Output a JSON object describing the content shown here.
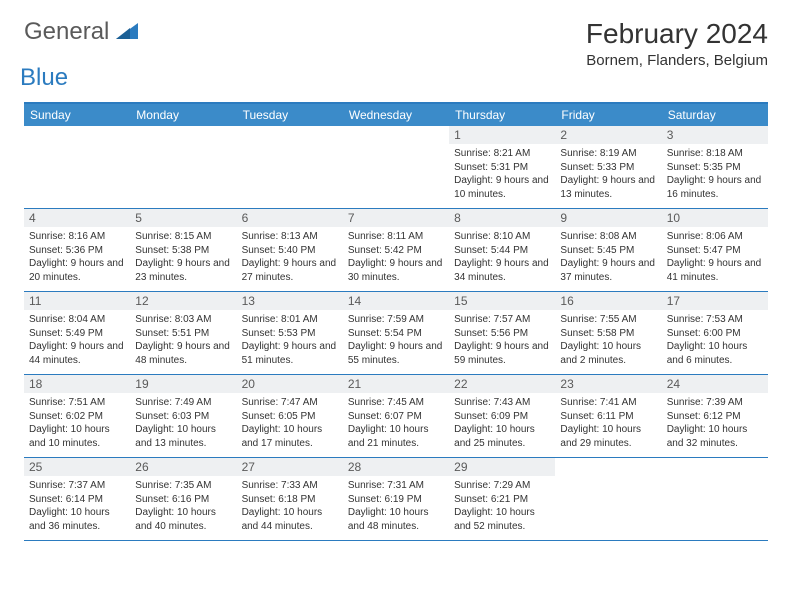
{
  "logo": {
    "general": "General",
    "blue": "Blue"
  },
  "title": "February 2024",
  "location": "Bornem, Flanders, Belgium",
  "colors": {
    "header_bar": "#3b8bc9",
    "top_border": "#2b7bbf",
    "row_border": "#2b7bbf",
    "daynum_bg": "#eef0f2",
    "text": "#333333",
    "logo_gray": "#5a5a5a",
    "logo_blue": "#2b7bbf"
  },
  "day_names": [
    "Sunday",
    "Monday",
    "Tuesday",
    "Wednesday",
    "Thursday",
    "Friday",
    "Saturday"
  ],
  "weeks": [
    [
      null,
      null,
      null,
      null,
      {
        "n": "1",
        "sr": "8:21 AM",
        "ss": "5:31 PM",
        "dl": "9 hours and 10 minutes."
      },
      {
        "n": "2",
        "sr": "8:19 AM",
        "ss": "5:33 PM",
        "dl": "9 hours and 13 minutes."
      },
      {
        "n": "3",
        "sr": "8:18 AM",
        "ss": "5:35 PM",
        "dl": "9 hours and 16 minutes."
      }
    ],
    [
      {
        "n": "4",
        "sr": "8:16 AM",
        "ss": "5:36 PM",
        "dl": "9 hours and 20 minutes."
      },
      {
        "n": "5",
        "sr": "8:15 AM",
        "ss": "5:38 PM",
        "dl": "9 hours and 23 minutes."
      },
      {
        "n": "6",
        "sr": "8:13 AM",
        "ss": "5:40 PM",
        "dl": "9 hours and 27 minutes."
      },
      {
        "n": "7",
        "sr": "8:11 AM",
        "ss": "5:42 PM",
        "dl": "9 hours and 30 minutes."
      },
      {
        "n": "8",
        "sr": "8:10 AM",
        "ss": "5:44 PM",
        "dl": "9 hours and 34 minutes."
      },
      {
        "n": "9",
        "sr": "8:08 AM",
        "ss": "5:45 PM",
        "dl": "9 hours and 37 minutes."
      },
      {
        "n": "10",
        "sr": "8:06 AM",
        "ss": "5:47 PM",
        "dl": "9 hours and 41 minutes."
      }
    ],
    [
      {
        "n": "11",
        "sr": "8:04 AM",
        "ss": "5:49 PM",
        "dl": "9 hours and 44 minutes."
      },
      {
        "n": "12",
        "sr": "8:03 AM",
        "ss": "5:51 PM",
        "dl": "9 hours and 48 minutes."
      },
      {
        "n": "13",
        "sr": "8:01 AM",
        "ss": "5:53 PM",
        "dl": "9 hours and 51 minutes."
      },
      {
        "n": "14",
        "sr": "7:59 AM",
        "ss": "5:54 PM",
        "dl": "9 hours and 55 minutes."
      },
      {
        "n": "15",
        "sr": "7:57 AM",
        "ss": "5:56 PM",
        "dl": "9 hours and 59 minutes."
      },
      {
        "n": "16",
        "sr": "7:55 AM",
        "ss": "5:58 PM",
        "dl": "10 hours and 2 minutes."
      },
      {
        "n": "17",
        "sr": "7:53 AM",
        "ss": "6:00 PM",
        "dl": "10 hours and 6 minutes."
      }
    ],
    [
      {
        "n": "18",
        "sr": "7:51 AM",
        "ss": "6:02 PM",
        "dl": "10 hours and 10 minutes."
      },
      {
        "n": "19",
        "sr": "7:49 AM",
        "ss": "6:03 PM",
        "dl": "10 hours and 13 minutes."
      },
      {
        "n": "20",
        "sr": "7:47 AM",
        "ss": "6:05 PM",
        "dl": "10 hours and 17 minutes."
      },
      {
        "n": "21",
        "sr": "7:45 AM",
        "ss": "6:07 PM",
        "dl": "10 hours and 21 minutes."
      },
      {
        "n": "22",
        "sr": "7:43 AM",
        "ss": "6:09 PM",
        "dl": "10 hours and 25 minutes."
      },
      {
        "n": "23",
        "sr": "7:41 AM",
        "ss": "6:11 PM",
        "dl": "10 hours and 29 minutes."
      },
      {
        "n": "24",
        "sr": "7:39 AM",
        "ss": "6:12 PM",
        "dl": "10 hours and 32 minutes."
      }
    ],
    [
      {
        "n": "25",
        "sr": "7:37 AM",
        "ss": "6:14 PM",
        "dl": "10 hours and 36 minutes."
      },
      {
        "n": "26",
        "sr": "7:35 AM",
        "ss": "6:16 PM",
        "dl": "10 hours and 40 minutes."
      },
      {
        "n": "27",
        "sr": "7:33 AM",
        "ss": "6:18 PM",
        "dl": "10 hours and 44 minutes."
      },
      {
        "n": "28",
        "sr": "7:31 AM",
        "ss": "6:19 PM",
        "dl": "10 hours and 48 minutes."
      },
      {
        "n": "29",
        "sr": "7:29 AM",
        "ss": "6:21 PM",
        "dl": "10 hours and 52 minutes."
      },
      null,
      null
    ]
  ],
  "labels": {
    "sunrise": "Sunrise:",
    "sunset": "Sunset:",
    "daylight": "Daylight:"
  }
}
